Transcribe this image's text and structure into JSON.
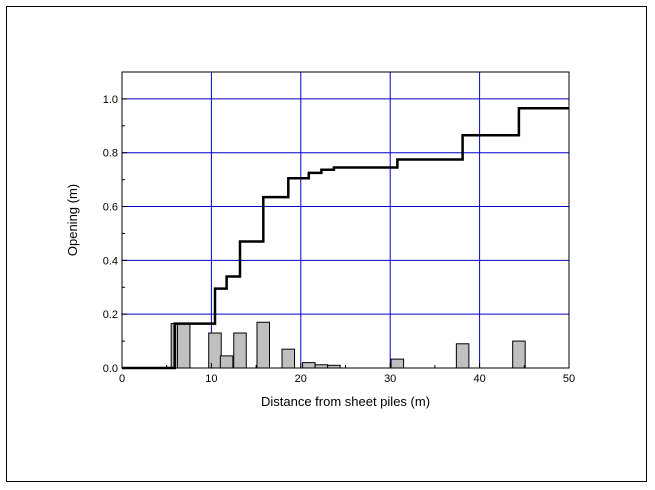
{
  "chart_data": {
    "type": "bar",
    "title": "",
    "xlabel": "Distance from sheet piles (m)",
    "ylabel": "Opening (m)",
    "xlim": [
      0,
      50
    ],
    "ylim": [
      0,
      1.1
    ],
    "xticks": [
      0,
      10,
      20,
      30,
      40,
      50
    ],
    "yticks": [
      0.0,
      0.2,
      0.4,
      0.6,
      0.8,
      1.0
    ],
    "xtick_labels": [
      "0",
      "10",
      "20",
      "30",
      "40",
      "50"
    ],
    "ytick_labels": [
      "0.0",
      "0.2",
      "0.4",
      "0.6",
      "0.8",
      "1.0"
    ],
    "grid": true,
    "colors": {
      "grid": "#0000cc",
      "bars": "#c0c0c0",
      "line": "#000000"
    },
    "bars": [
      {
        "x": 6.2,
        "value": 0.165
      },
      {
        "x": 6.9,
        "value": 0.165
      },
      {
        "x": 10.4,
        "value": 0.13
      },
      {
        "x": 11.7,
        "value": 0.045
      },
      {
        "x": 13.2,
        "value": 0.13
      },
      {
        "x": 15.8,
        "value": 0.17
      },
      {
        "x": 18.6,
        "value": 0.07
      },
      {
        "x": 20.9,
        "value": 0.02
      },
      {
        "x": 22.3,
        "value": 0.012
      },
      {
        "x": 23.7,
        "value": 0.01
      },
      {
        "x": 30.8,
        "value": 0.033
      },
      {
        "x": 38.1,
        "value": 0.09
      },
      {
        "x": 44.4,
        "value": 0.1
      }
    ],
    "bar_width": 1.4,
    "series": [
      {
        "type": "line",
        "step": true,
        "points": [
          [
            0,
            0.0
          ],
          [
            5.9,
            0.0
          ],
          [
            5.9,
            0.165
          ],
          [
            10.4,
            0.165
          ],
          [
            10.4,
            0.295
          ],
          [
            11.7,
            0.295
          ],
          [
            11.7,
            0.34
          ],
          [
            13.2,
            0.34
          ],
          [
            13.2,
            0.47
          ],
          [
            15.8,
            0.47
          ],
          [
            15.8,
            0.635
          ],
          [
            18.6,
            0.635
          ],
          [
            18.6,
            0.705
          ],
          [
            20.9,
            0.705
          ],
          [
            20.9,
            0.725
          ],
          [
            22.3,
            0.725
          ],
          [
            22.3,
            0.737
          ],
          [
            23.7,
            0.737
          ],
          [
            23.7,
            0.745
          ],
          [
            30.8,
            0.745
          ],
          [
            30.8,
            0.775
          ],
          [
            38.1,
            0.775
          ],
          [
            38.1,
            0.865
          ],
          [
            44.4,
            0.865
          ],
          [
            44.4,
            0.965
          ],
          [
            50,
            0.965
          ]
        ]
      }
    ]
  }
}
